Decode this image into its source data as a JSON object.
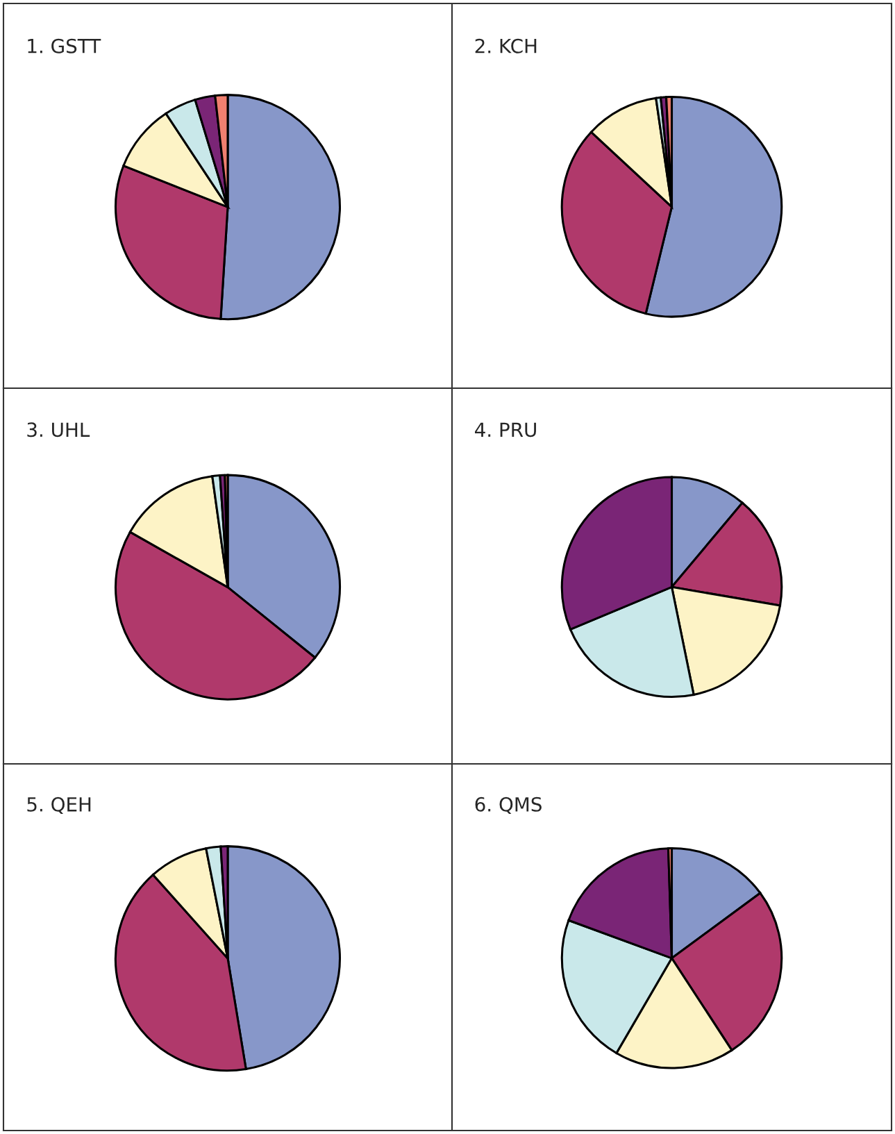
{
  "chart_data": [
    {
      "type": "pie",
      "title": "1. GSTT",
      "categories": [
        null,
        null,
        null,
        null,
        null,
        null
      ],
      "values": [
        51,
        30,
        9.7,
        4.6,
        2.9,
        1.8
      ],
      "colors": [
        "#8797c9",
        "#b0396b",
        "#fdf3c6",
        "#c9e8ea",
        "#7a2576",
        "#f08070"
      ]
    },
    {
      "type": "pie",
      "title": "2. KCH",
      "categories": [
        null,
        null,
        null,
        null,
        null,
        null
      ],
      "values": [
        53.8,
        33.1,
        10.8,
        0.7,
        0.8,
        0.8
      ],
      "colors": [
        "#8797c9",
        "#b0396b",
        "#fdf3c6",
        "#c9e8ea",
        "#7a2576",
        "#f08070"
      ]
    },
    {
      "type": "pie",
      "title": "3. UHL",
      "categories": [
        null,
        null,
        null,
        null,
        null,
        null
      ],
      "values": [
        35.8,
        47.4,
        14.6,
        1.1,
        0.7,
        0.4
      ],
      "colors": [
        "#8797c9",
        "#b0396b",
        "#fdf3c6",
        "#c9e8ea",
        "#7a2576",
        "#f08070"
      ]
    },
    {
      "type": "pie",
      "title": "4. PRU",
      "categories": [
        null,
        null,
        null,
        null,
        null
      ],
      "values": [
        11.1,
        16.6,
        19.1,
        21.9,
        31.3
      ],
      "colors": [
        "#8797c9",
        "#b0396b",
        "#fdf3c6",
        "#c9e8ea",
        "#7a2576"
      ]
    },
    {
      "type": "pie",
      "title": "5. QEH",
      "categories": [
        null,
        null,
        null,
        null,
        null
      ],
      "values": [
        47.4,
        41.0,
        8.5,
        2.1,
        1.0
      ],
      "colors": [
        "#8797c9",
        "#b0396b",
        "#fdf3c6",
        "#c9e8ea",
        "#7a2576"
      ]
    },
    {
      "type": "pie",
      "title": "6. QMS",
      "categories": [
        null,
        null,
        null,
        null,
        null,
        null
      ],
      "values": [
        14.9,
        25.9,
        17.6,
        22.2,
        18.9,
        0.5
      ],
      "colors": [
        "#8797c9",
        "#b0396b",
        "#fdf3c6",
        "#c9e8ea",
        "#7a2576",
        "#f08070"
      ]
    }
  ]
}
